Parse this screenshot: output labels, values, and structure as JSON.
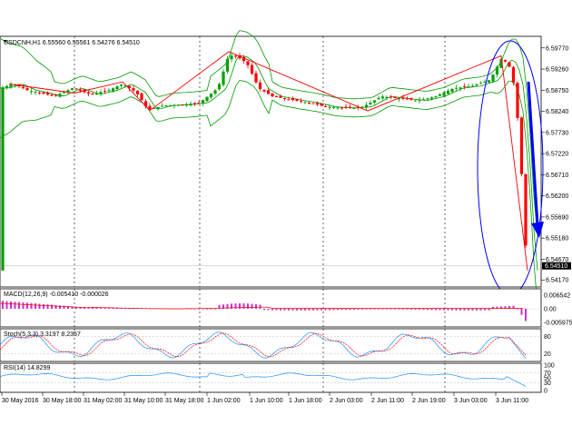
{
  "main": {
    "symbol_header": "USDCNH,H1  6.55560 6.55561 6.54276 6.54510",
    "price_label": "6.54510",
    "y_ticks": [
      "6.59770",
      "6.59260",
      "6.58750",
      "6.58240",
      "6.57730",
      "6.57220",
      "6.56710",
      "6.56200",
      "6.55690",
      "6.55180",
      "6.54670",
      "6.54510",
      "6.54170"
    ],
    "price_min": 6.54,
    "price_max": 6.6005
  },
  "macd": {
    "label": "MACD(12,26,9) -0.005410 -0.000026",
    "ticks": [
      "0.006542",
      "0.00",
      "-0.005975"
    ]
  },
  "stoch": {
    "label": "Stoch(5,3,3) 3.3197 8.2357",
    "ticks": [
      "80",
      "20"
    ]
  },
  "rsi": {
    "label": "RSI(14) 14.8299",
    "ticks": [
      "100",
      "70",
      "50",
      "30",
      "0"
    ]
  },
  "x_labels": [
    "30 May 2016",
    "30 May 18:00",
    "31 May 02:00",
    "31 May 10:00",
    "31 May 18:00",
    "1 Jun 02:00",
    "1 Jun 10:00",
    "1 Jun 18:00",
    "2 Jun 03:00",
    "2 Jun 11:00",
    "2 Jun 19:00",
    "3 Jun 03:00",
    "3 Jun 11:00"
  ],
  "colors": {
    "bull": "#00a000",
    "bear": "#ff0000",
    "bands": "#009900",
    "zigzag": "#ff0000",
    "annotation": "#0000ff",
    "macd": "#cc33cc",
    "stoch_main": "#1e90ff",
    "stoch_signal": "#ff0000",
    "rsi": "#1e90ff"
  }
}
